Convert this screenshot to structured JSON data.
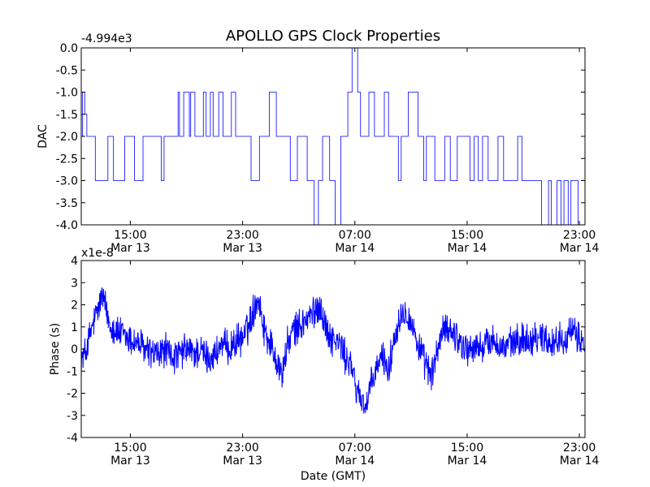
{
  "figure": {
    "title": "APOLLO GPS Clock Properties",
    "xlabel": "Date (GMT)"
  },
  "chart_data": [
    {
      "type": "line",
      "ylabel": "DAC",
      "offset_label": "-4.994e3",
      "ylim": [
        -4.0,
        0.0
      ],
      "yticks": [
        "0.0",
        "-0.5",
        "-1.0",
        "-1.5",
        "-2.0",
        "-2.5",
        "-3.0",
        "-3.5",
        "-4.0"
      ],
      "xticks": [
        {
          "time": "15:00",
          "date": "Mar 13"
        },
        {
          "time": "23:00",
          "date": "Mar 13"
        },
        {
          "time": "07:00",
          "date": "Mar 14"
        },
        {
          "time": "15:00",
          "date": "Mar 14"
        },
        {
          "time": "23:00",
          "date": "Mar 14"
        }
      ],
      "xtick_hours": [
        15,
        23,
        31,
        39,
        47
      ],
      "xlim_hours": [
        11.5,
        47.4
      ],
      "series": [
        {
          "color": "#0000ff",
          "x": [
            11.5,
            11.6,
            11.75,
            11.9,
            12.3,
            12.5,
            13.4,
            13.8,
            14.6,
            15.3,
            15.9,
            17.1,
            17.2,
            17.4,
            18.4,
            18.5,
            18.8,
            19.2,
            19.3,
            19.6,
            20.2,
            20.4,
            20.7,
            20.9,
            21.3,
            21.6,
            22.2,
            22.5,
            23.6,
            24.2,
            24.9,
            25.4,
            26.4,
            26.9,
            27.6,
            28.1,
            28.4,
            28.7,
            29.2,
            29.6,
            30.0,
            30.5,
            30.8,
            31.2,
            31.4,
            32.0,
            32.4,
            33.1,
            33.4,
            34.1,
            34.3,
            34.8,
            35.5,
            35.9,
            36.1,
            36.7,
            37.4,
            37.8,
            38.3,
            39.2,
            39.5,
            39.8,
            40.1,
            40.5,
            41.2,
            41.6,
            42.6,
            42.9,
            43.7,
            44.3,
            44.8,
            45.0,
            45.4,
            45.7,
            45.9,
            46.2,
            46.4,
            46.9,
            47.4
          ],
          "y": [
            -2.0,
            -1.0,
            -1.5,
            -2.0,
            -2.0,
            -3.0,
            -2.0,
            -3.0,
            -2.0,
            -3.0,
            -2.0,
            -2.0,
            -3.0,
            -2.0,
            -1.0,
            -2.0,
            -1.0,
            -2.0,
            -1.0,
            -2.0,
            -1.0,
            -2.0,
            -1.0,
            -2.0,
            -1.0,
            -2.0,
            -1.0,
            -2.0,
            -3.0,
            -2.0,
            -1.0,
            -2.0,
            -3.0,
            -2.0,
            -3.0,
            -4.0,
            -3.0,
            -2.0,
            -3.0,
            -4.0,
            -2.0,
            -1.0,
            0.0,
            -1.0,
            -2.0,
            -1.0,
            -2.0,
            -1.0,
            -2.0,
            -3.0,
            -2.0,
            -1.0,
            -2.0,
            -3.0,
            -2.0,
            -3.0,
            -2.0,
            -3.0,
            -2.0,
            -3.0,
            -2.0,
            -3.0,
            -2.0,
            -3.0,
            -2.0,
            -3.0,
            -2.0,
            -3.0,
            -3.0,
            -4.0,
            -3.0,
            -4.0,
            -3.0,
            -4.0,
            -3.0,
            -4.0,
            -3.0,
            -4.0,
            -3.0
          ]
        }
      ]
    },
    {
      "type": "line",
      "ylabel": "Phase (s)",
      "offset_label": "x1e-8",
      "ylim": [
        -4,
        4
      ],
      "yticks": [
        "4",
        "3",
        "2",
        "1",
        "0",
        "-1",
        "-2",
        "-3",
        "-4"
      ],
      "xticks": [
        {
          "time": "15:00",
          "date": "Mar 13"
        },
        {
          "time": "23:00",
          "date": "Mar 13"
        },
        {
          "time": "07:00",
          "date": "Mar 14"
        },
        {
          "time": "15:00",
          "date": "Mar 14"
        },
        {
          "time": "23:00",
          "date": "Mar 14"
        }
      ],
      "xtick_hours": [
        15,
        23,
        31,
        39,
        47
      ],
      "xlim_hours": [
        11.5,
        47.4
      ],
      "series": [
        {
          "color": "#0000ff",
          "x": [
            11.5,
            11.8,
            12.2,
            12.6,
            13.0,
            13.5,
            14.0,
            14.5,
            15.0,
            15.5,
            16.0,
            16.5,
            17.0,
            17.5,
            18.0,
            18.5,
            19.0,
            19.5,
            20.0,
            20.5,
            21.0,
            21.5,
            22.0,
            22.5,
            23.0,
            23.4,
            23.8,
            24.1,
            24.5,
            25.0,
            25.5,
            25.8,
            26.2,
            26.6,
            27.0,
            27.5,
            28.0,
            28.5,
            29.0,
            29.5,
            30.0,
            30.3,
            30.7,
            31.0,
            31.4,
            31.8,
            32.2,
            32.6,
            33.0,
            33.4,
            33.8,
            34.2,
            34.6,
            35.0,
            35.5,
            36.0,
            36.5,
            37.0,
            37.5,
            38.0,
            38.5,
            39.0,
            39.5,
            40.0,
            40.5,
            41.0,
            41.5,
            42.0,
            42.5,
            43.0,
            43.5,
            44.0,
            44.5,
            45.0,
            45.5,
            46.0,
            46.5,
            47.0,
            47.4
          ],
          "y": [
            -0.5,
            -0.2,
            0.8,
            1.6,
            2.4,
            1.2,
            0.8,
            0.6,
            0.4,
            0.3,
            0.0,
            -0.2,
            -0.3,
            0.0,
            -0.4,
            -0.3,
            0.0,
            -0.2,
            -0.1,
            -0.4,
            -0.3,
            0.2,
            0.0,
            0.3,
            0.5,
            1.0,
            1.8,
            2.4,
            1.0,
            0.2,
            -0.6,
            -1.2,
            0.2,
            0.8,
            1.0,
            1.3,
            1.6,
            2.0,
            0.8,
            0.4,
            0.2,
            -0.4,
            -0.6,
            -1.6,
            -2.2,
            -2.6,
            -1.6,
            -0.8,
            -0.3,
            -1.0,
            0.5,
            1.5,
            1.8,
            1.2,
            0.2,
            -0.7,
            -1.2,
            0.3,
            1.0,
            0.8,
            0.3,
            0.0,
            0.0,
            0.1,
            0.3,
            0.4,
            0.0,
            0.2,
            0.3,
            0.5,
            0.4,
            0.6,
            0.5,
            0.3,
            0.4,
            0.6,
            0.7,
            0.5,
            0.2
          ]
        }
      ]
    }
  ]
}
